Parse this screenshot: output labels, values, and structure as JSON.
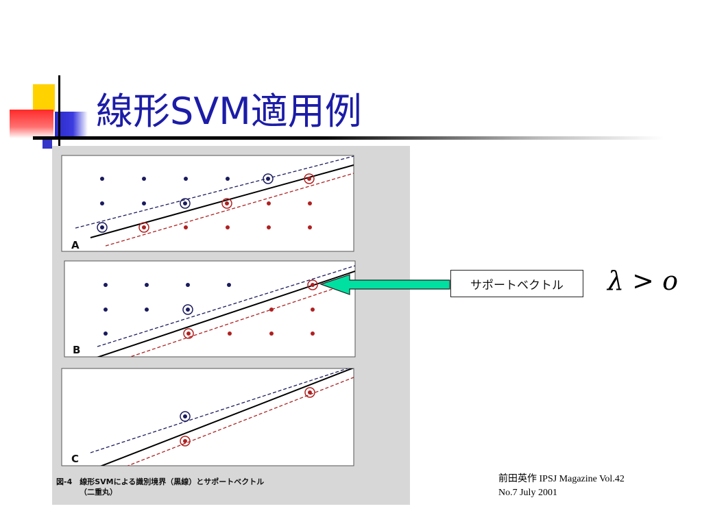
{
  "slide": {
    "title": "線形SVM適用例",
    "support_vector_label": "サポートベクトル",
    "formula": "λ > o",
    "citation_line1": "前田英作  IPSJ Magazine Vol.42",
    "citation_line2": "No.7 July 2001"
  },
  "figure": {
    "panel_labels": [
      "A",
      "B",
      "C"
    ],
    "caption_line1": "図-4　線形SVMによる識別境界（黒線）とサポートベクトル",
    "caption_line2": "（二重丸）"
  },
  "colors": {
    "title": "#1c1ca8",
    "class_blue": "#1a1a5e",
    "class_red": "#b02020",
    "arrow": "#00e0a0"
  }
}
